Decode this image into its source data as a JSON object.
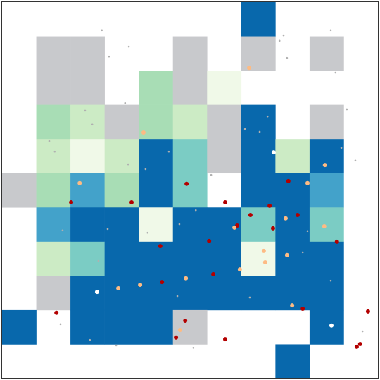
{
  "chart_data": {
    "type": "heatmap",
    "palette": [
      "#c8c9cc",
      "#f0f9e8",
      "#ccebc5",
      "#a8ddb5",
      "#7bccc4",
      "#43a2ca",
      "#0868ac"
    ],
    "xlim": [
      0,
      11
    ],
    "ylim": [
      11,
      0
    ],
    "cells": [
      [
        null,
        null,
        null,
        null,
        null,
        null,
        null,
        6,
        null,
        null,
        null
      ],
      [
        null,
        0,
        0,
        null,
        null,
        0,
        null,
        0,
        null,
        0,
        null
      ],
      [
        null,
        0,
        0,
        null,
        3,
        0,
        1,
        null,
        null,
        null,
        null
      ],
      [
        null,
        3,
        2,
        0,
        3,
        2,
        0,
        6,
        null,
        0,
        null
      ],
      [
        null,
        2,
        1,
        2,
        6,
        4,
        0,
        6,
        2,
        6,
        null
      ],
      [
        0,
        3,
        5,
        3,
        6,
        4,
        null,
        6,
        6,
        5,
        null
      ],
      [
        null,
        5,
        6,
        6,
        1,
        6,
        6,
        4,
        6,
        4,
        null
      ],
      [
        null,
        2,
        4,
        6,
        6,
        6,
        6,
        1,
        6,
        6,
        null
      ],
      [
        null,
        0,
        6,
        6,
        6,
        6,
        6,
        6,
        6,
        6,
        null
      ],
      [
        6,
        null,
        6,
        6,
        6,
        0,
        null,
        null,
        null,
        6,
        null
      ],
      [
        null,
        null,
        null,
        null,
        null,
        null,
        null,
        null,
        6,
        null,
        null
      ]
    ],
    "series": [
      {
        "color": "#b0b0b0",
        "marker_size": 1.3,
        "x": [
          2.92,
          3.13,
          3.71,
          8.24,
          8.12,
          8.34,
          9.62,
          9.76,
          10.09,
          3.6,
          2.43,
          2.64,
          1.38,
          1.54,
          3.69,
          4.2,
          4.88,
          7.11,
          7.54,
          7.77,
          10.34,
          9.93,
          6.12,
          5.67,
          5.19,
          4.26,
          3.09,
          1.77,
          2.82,
          8.8,
          9.62,
          8.94,
          10.55,
          1.71,
          2.57,
          3.34,
          5.6,
          7.25,
          5.13
        ],
        "values": [
          0.82,
          1.59,
          1.3,
          0.97,
          1.13,
          1.63,
          0.82,
          2.06,
          3.13,
          2.95,
          3.17,
          3.58,
          4.06,
          4.37,
          4.74,
          4.88,
          4.37,
          3.71,
          3.79,
          3.34,
          4.63,
          4.26,
          5.05,
          6.08,
          6.49,
          6.74,
          6.63,
          6.67,
          7.56,
          7.31,
          8.14,
          6.69,
          9.62,
          9.41,
          9.87,
          10.03,
          10.1,
          8.63,
          8.59
        ]
      },
      {
        "color": "#b30000",
        "marker_size": 3,
        "x": [
          5.4,
          2.02,
          3.79,
          6.53,
          8.38,
          7.83,
          7.27,
          8.65,
          6.88,
          7.93,
          6.06,
          4.63,
          9.8,
          6.18,
          4.68,
          8.8,
          1.59,
          10.71,
          5.36,
          5.09,
          6.53,
          10.48,
          10.38
        ],
        "values": [
          5.31,
          5.85,
          5.85,
          5.85,
          5.23,
          5.95,
          6.22,
          6.22,
          6.53,
          6.61,
          6.98,
          7.13,
          7.0,
          7.95,
          8.18,
          8.96,
          9.08,
          9.04,
          9.31,
          9.8,
          9.85,
          9.99,
          10.07
        ]
      },
      {
        "color": "#fdbb84",
        "marker_size": 3,
        "x": [
          7.23,
          4.14,
          9.45,
          2.27,
          8.94,
          8.3,
          6.8,
          9.43,
          7.66,
          7.7,
          8.34,
          6.96,
          5.38,
          4.04,
          3.4,
          8.49,
          5.21
        ],
        "values": [
          1.92,
          3.81,
          4.76,
          5.29,
          5.29,
          6.32,
          6.59,
          6.55,
          7.27,
          7.6,
          7.39,
          7.81,
          8.07,
          8.26,
          8.36,
          8.86,
          9.58
        ]
      },
      {
        "color": "#ffffff",
        "marker_size": 3,
        "x": [
          7.95,
          2.78,
          9.64
        ],
        "values": [
          4.39,
          8.47,
          9.45
        ]
      }
    ]
  }
}
